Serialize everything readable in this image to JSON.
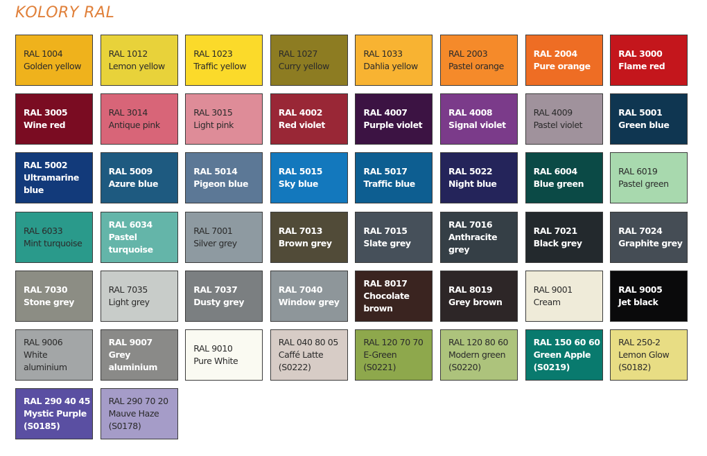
{
  "title": "KOLORY RAL",
  "swatches": [
    {
      "code": "RAL 1004",
      "name": "Golden yellow",
      "color": "#efb21c",
      "text": "light"
    },
    {
      "code": "RAL 1012",
      "name": "Lemon yellow",
      "color": "#e8d23a",
      "text": "light"
    },
    {
      "code": "RAL 1023",
      "name": "Traffic yellow",
      "color": "#fbda2a",
      "text": "light"
    },
    {
      "code": "RAL 1027",
      "name": "Curry yellow",
      "color": "#8d7c22",
      "text": "light"
    },
    {
      "code": "RAL 1033",
      "name": "Dahlia yellow",
      "color": "#f8b332",
      "text": "light"
    },
    {
      "code": "RAL 2003",
      "name": "Pastel orange",
      "color": "#f58a2a",
      "text": "light"
    },
    {
      "code": "RAL 2004",
      "name": "Pure orange",
      "color": "#ee6d24",
      "text": "dark"
    },
    {
      "code": "RAL 3000",
      "name": "Flame red",
      "color": "#c4161c",
      "text": "dark"
    },
    {
      "code": "RAL 3005",
      "name": "Wine red",
      "color": "#7a0c22",
      "text": "dark"
    },
    {
      "code": "RAL 3014",
      "name": "Antique pink",
      "color": "#d86578",
      "text": "light"
    },
    {
      "code": "RAL 3015",
      "name": "Light pink",
      "color": "#de8c98",
      "text": "light"
    },
    {
      "code": "RAL 4002",
      "name": "Red violet",
      "color": "#992736",
      "text": "dark"
    },
    {
      "code": "RAL 4007",
      "name": "Purple violet",
      "color": "#3c1343",
      "text": "dark"
    },
    {
      "code": "RAL 4008",
      "name": "Signal violet",
      "color": "#7b3b8a",
      "text": "dark"
    },
    {
      "code": "RAL 4009",
      "name": "Pastel violet",
      "color": "#a0929c",
      "text": "light"
    },
    {
      "code": "RAL 5001",
      "name": "Green blue",
      "color": "#0f3651",
      "text": "dark"
    },
    {
      "code": "RAL 5002",
      "name": "Ultramarine\nblue",
      "color": "#123a7a",
      "text": "dark"
    },
    {
      "code": "RAL 5009",
      "name": "Azure blue",
      "color": "#1e5a80",
      "text": "dark"
    },
    {
      "code": "RAL 5014",
      "name": "Pigeon blue",
      "color": "#5c7896",
      "text": "dark"
    },
    {
      "code": "RAL 5015",
      "name": "Sky blue",
      "color": "#1378bd",
      "text": "dark"
    },
    {
      "code": "RAL 5017",
      "name": "Traffic blue",
      "color": "#0d5e91",
      "text": "dark"
    },
    {
      "code": "RAL 5022",
      "name": "Night blue",
      "color": "#24245a",
      "text": "dark"
    },
    {
      "code": "RAL 6004",
      "name": "Blue green",
      "color": "#0b4a46",
      "text": "dark"
    },
    {
      "code": "RAL 6019",
      "name": "Pastel green",
      "color": "#a8d9ae",
      "text": "light"
    },
    {
      "code": "RAL 6033",
      "name": "Mint turquoise",
      "color": "#2a9a8b",
      "text": "light"
    },
    {
      "code": "RAL 6034",
      "name": "Pastel turquoise",
      "color": "#64b5a9",
      "text": "dark"
    },
    {
      "code": "RAL 7001",
      "name": "Silver grey",
      "color": "#8e9aa1",
      "text": "light"
    },
    {
      "code": "RAL 7013",
      "name": "Brown grey",
      "color": "#514b38",
      "text": "dark"
    },
    {
      "code": "RAL 7015",
      "name": "Slate grey",
      "color": "#46505a",
      "text": "dark"
    },
    {
      "code": "RAL 7016",
      "name": "Anthracite grey",
      "color": "#353f46",
      "text": "dark"
    },
    {
      "code": "RAL 7021",
      "name": "Black grey",
      "color": "#23292d",
      "text": "dark"
    },
    {
      "code": "RAL 7024",
      "name": "Graphite grey",
      "color": "#454d55",
      "text": "dark"
    },
    {
      "code": "RAL 7030",
      "name": "Stone grey",
      "color": "#8c8d84",
      "text": "dark"
    },
    {
      "code": "RAL 7035",
      "name": "Light grey",
      "color": "#c8ccc9",
      "text": "light"
    },
    {
      "code": "RAL 7037",
      "name": "Dusty grey",
      "color": "#7b7f81",
      "text": "dark"
    },
    {
      "code": "RAL 7040",
      "name": "Window grey",
      "color": "#8e969a",
      "text": "dark"
    },
    {
      "code": "RAL 8017",
      "name": "Chocolate\nbrown",
      "color": "#3a2420",
      "text": "dark"
    },
    {
      "code": "RAL 8019",
      "name": "Grey brown",
      "color": "#2d2627",
      "text": "dark"
    },
    {
      "code": "RAL 9001",
      "name": "Cream",
      "color": "#efebd9",
      "text": "light"
    },
    {
      "code": "RAL 9005",
      "name": "Jet black",
      "color": "#0a0a0b",
      "text": "dark"
    },
    {
      "code": "RAL 9006",
      "name": "White\naluminium",
      "color": "#a3a6a7",
      "text": "light"
    },
    {
      "code": "RAL 9007",
      "name": "Grey aluminium",
      "color": "#8a8a88",
      "text": "dark"
    },
    {
      "code": "RAL 9010",
      "name": "Pure White",
      "color": "#fafaf2",
      "text": "light"
    },
    {
      "code": "RAL 040 80 05",
      "name": "Caffé Latte\n(S0222)",
      "color": "#d7ccc6",
      "text": "light"
    },
    {
      "code": "RAL 120 70 70",
      "name": "E-Green\n(S0221)",
      "color": "#8ea84c",
      "text": "light"
    },
    {
      "code": "RAL 120 80 60",
      "name": "Modern green\n(S0220)",
      "color": "#adc37c",
      "text": "light"
    },
    {
      "code": "RAL 150 60 60",
      "name": "Green Apple\n(S0219)",
      "color": "#097a6e",
      "text": "dark"
    },
    {
      "code": "RAL 250-2",
      "name": "Lemon Glow\n(S0182)",
      "color": "#e8dd84",
      "text": "light"
    },
    {
      "code": "RAL 290 40 45",
      "name": "Mystic Purple\n(S0185)",
      "color": "#5a4fa2",
      "text": "dark"
    },
    {
      "code": "RAL 290 70 20",
      "name": "Mauve Haze\n(S0178)",
      "color": "#a59cc8",
      "text": "light"
    }
  ]
}
